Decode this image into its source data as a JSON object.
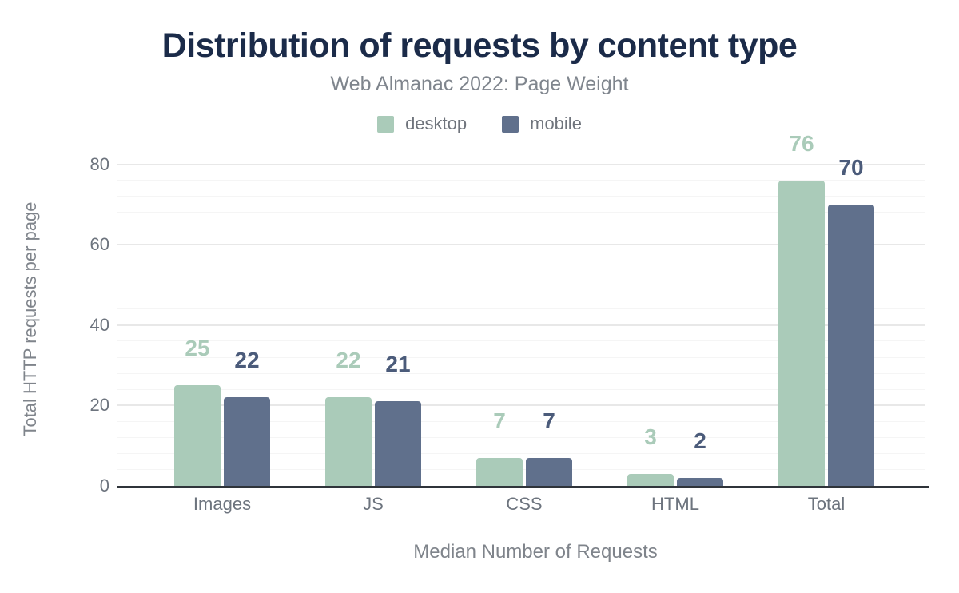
{
  "chart_data": {
    "type": "bar",
    "title": "Distribution of requests by content type",
    "subtitle": "Web Almanac 2022: Page Weight",
    "categories": [
      "Images",
      "JS",
      "CSS",
      "HTML",
      "Total"
    ],
    "series": [
      {
        "name": "desktop",
        "color": "#aacbb9",
        "label_color": "#aacbb9",
        "values": [
          25,
          22,
          7,
          3,
          76
        ]
      },
      {
        "name": "mobile",
        "color": "#60708c",
        "label_color": "#4b5b7a",
        "values": [
          22,
          21,
          7,
          2,
          70
        ]
      }
    ],
    "xlabel": "Median Number of Requests",
    "ylabel": "Total HTTP requests per page",
    "ylim": [
      0,
      80
    ],
    "yticks": [
      0,
      20,
      40,
      60,
      80
    ],
    "minor_tick_step": 4,
    "grid": "major and minor horizontal gridlines",
    "legend_position": "top",
    "bar_value_labels": true
  },
  "colors": {
    "background": "#ffffff",
    "title": "#1b2b49",
    "subtitle": "#7f858d",
    "axis_text": "#6d747e",
    "axis_title": "#7f848b",
    "legend_text": "#6f747c",
    "grid_major": "#e8e8e8",
    "grid_minor": "#f5f5f5",
    "axis_line": "#2f343a"
  }
}
